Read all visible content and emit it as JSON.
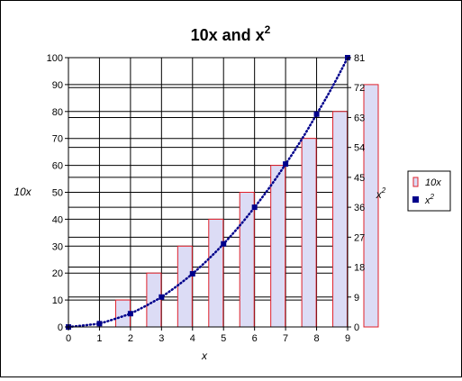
{
  "chart_data": {
    "type": "bar+line",
    "title": "10x and x",
    "title_superscript": "2",
    "xlabel": "x",
    "ylabel_left": "10x",
    "ylabel_right": "x",
    "ylabel_right_superscript": "2",
    "x": [
      0,
      1,
      2,
      3,
      4,
      5,
      6,
      7,
      8,
      9
    ],
    "x_tick_labels": [
      "0",
      "1",
      "2",
      "3",
      "4",
      "5",
      "6",
      "7",
      "8",
      "9"
    ],
    "y_left_lim": [
      0,
      100
    ],
    "y_left_ticks": [
      0,
      10,
      20,
      30,
      40,
      50,
      60,
      70,
      80,
      90,
      100
    ],
    "y_right_lim": [
      0,
      81
    ],
    "y_right_ticks": [
      0,
      9,
      18,
      27,
      36,
      45,
      54,
      63,
      72,
      81
    ],
    "grid": true,
    "legend_position": "right",
    "series": [
      {
        "name": "10x",
        "kind": "bar",
        "axis": "left",
        "values": [
          0,
          10,
          20,
          30,
          40,
          50,
          60,
          70,
          80,
          90
        ],
        "fill": "#dcdcf5",
        "stroke": "#e0202a"
      },
      {
        "name": "x",
        "name_superscript": "2",
        "kind": "dotted-line",
        "axis": "right",
        "values": [
          0,
          1,
          4,
          9,
          16,
          25,
          36,
          49,
          64,
          81
        ],
        "color": "#00008b"
      }
    ]
  }
}
